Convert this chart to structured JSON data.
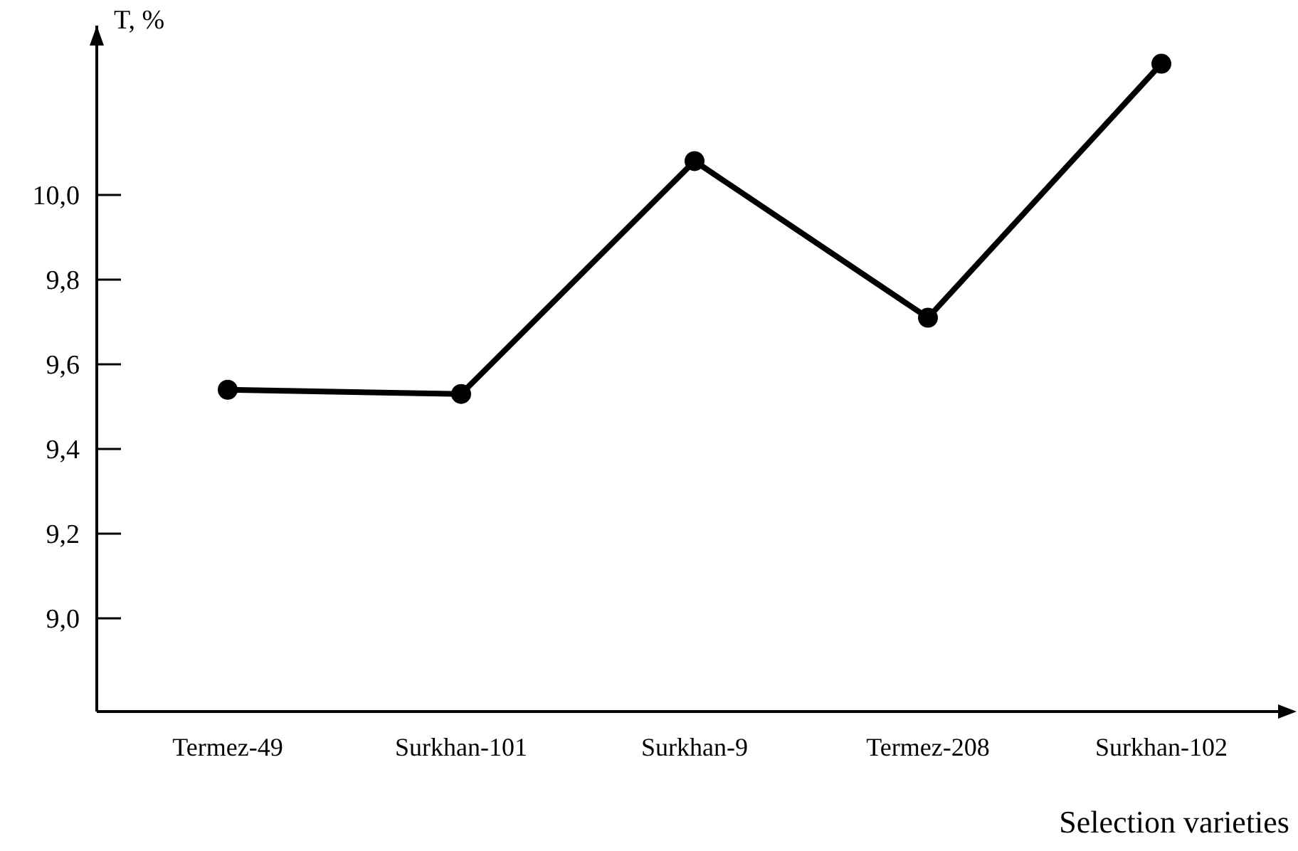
{
  "chart_data": {
    "type": "line",
    "ylabel": "T, %",
    "xlabel": "Selection varieties",
    "categories": [
      "Termez-49",
      "Surkhan-101",
      "Surkhan-9",
      "Termez-208",
      "Surkhan-102"
    ],
    "series": [
      {
        "color": "#000000",
        "values": [
          9.54,
          9.53,
          10.08,
          9.71,
          10.31
        ]
      }
    ],
    "ylim": [
      8.78,
      10.4
    ],
    "yticks": [
      {
        "value": 9.0,
        "label": "9,0"
      },
      {
        "value": 9.2,
        "label": "9,2"
      },
      {
        "value": 9.4,
        "label": "9,4"
      },
      {
        "value": 9.6,
        "label": "9,6"
      },
      {
        "value": 9.8,
        "label": "9,8"
      },
      {
        "value": 10.0,
        "label": "10,0"
      }
    ],
    "grid": false,
    "marker": "circle",
    "line_style": "solid"
  }
}
